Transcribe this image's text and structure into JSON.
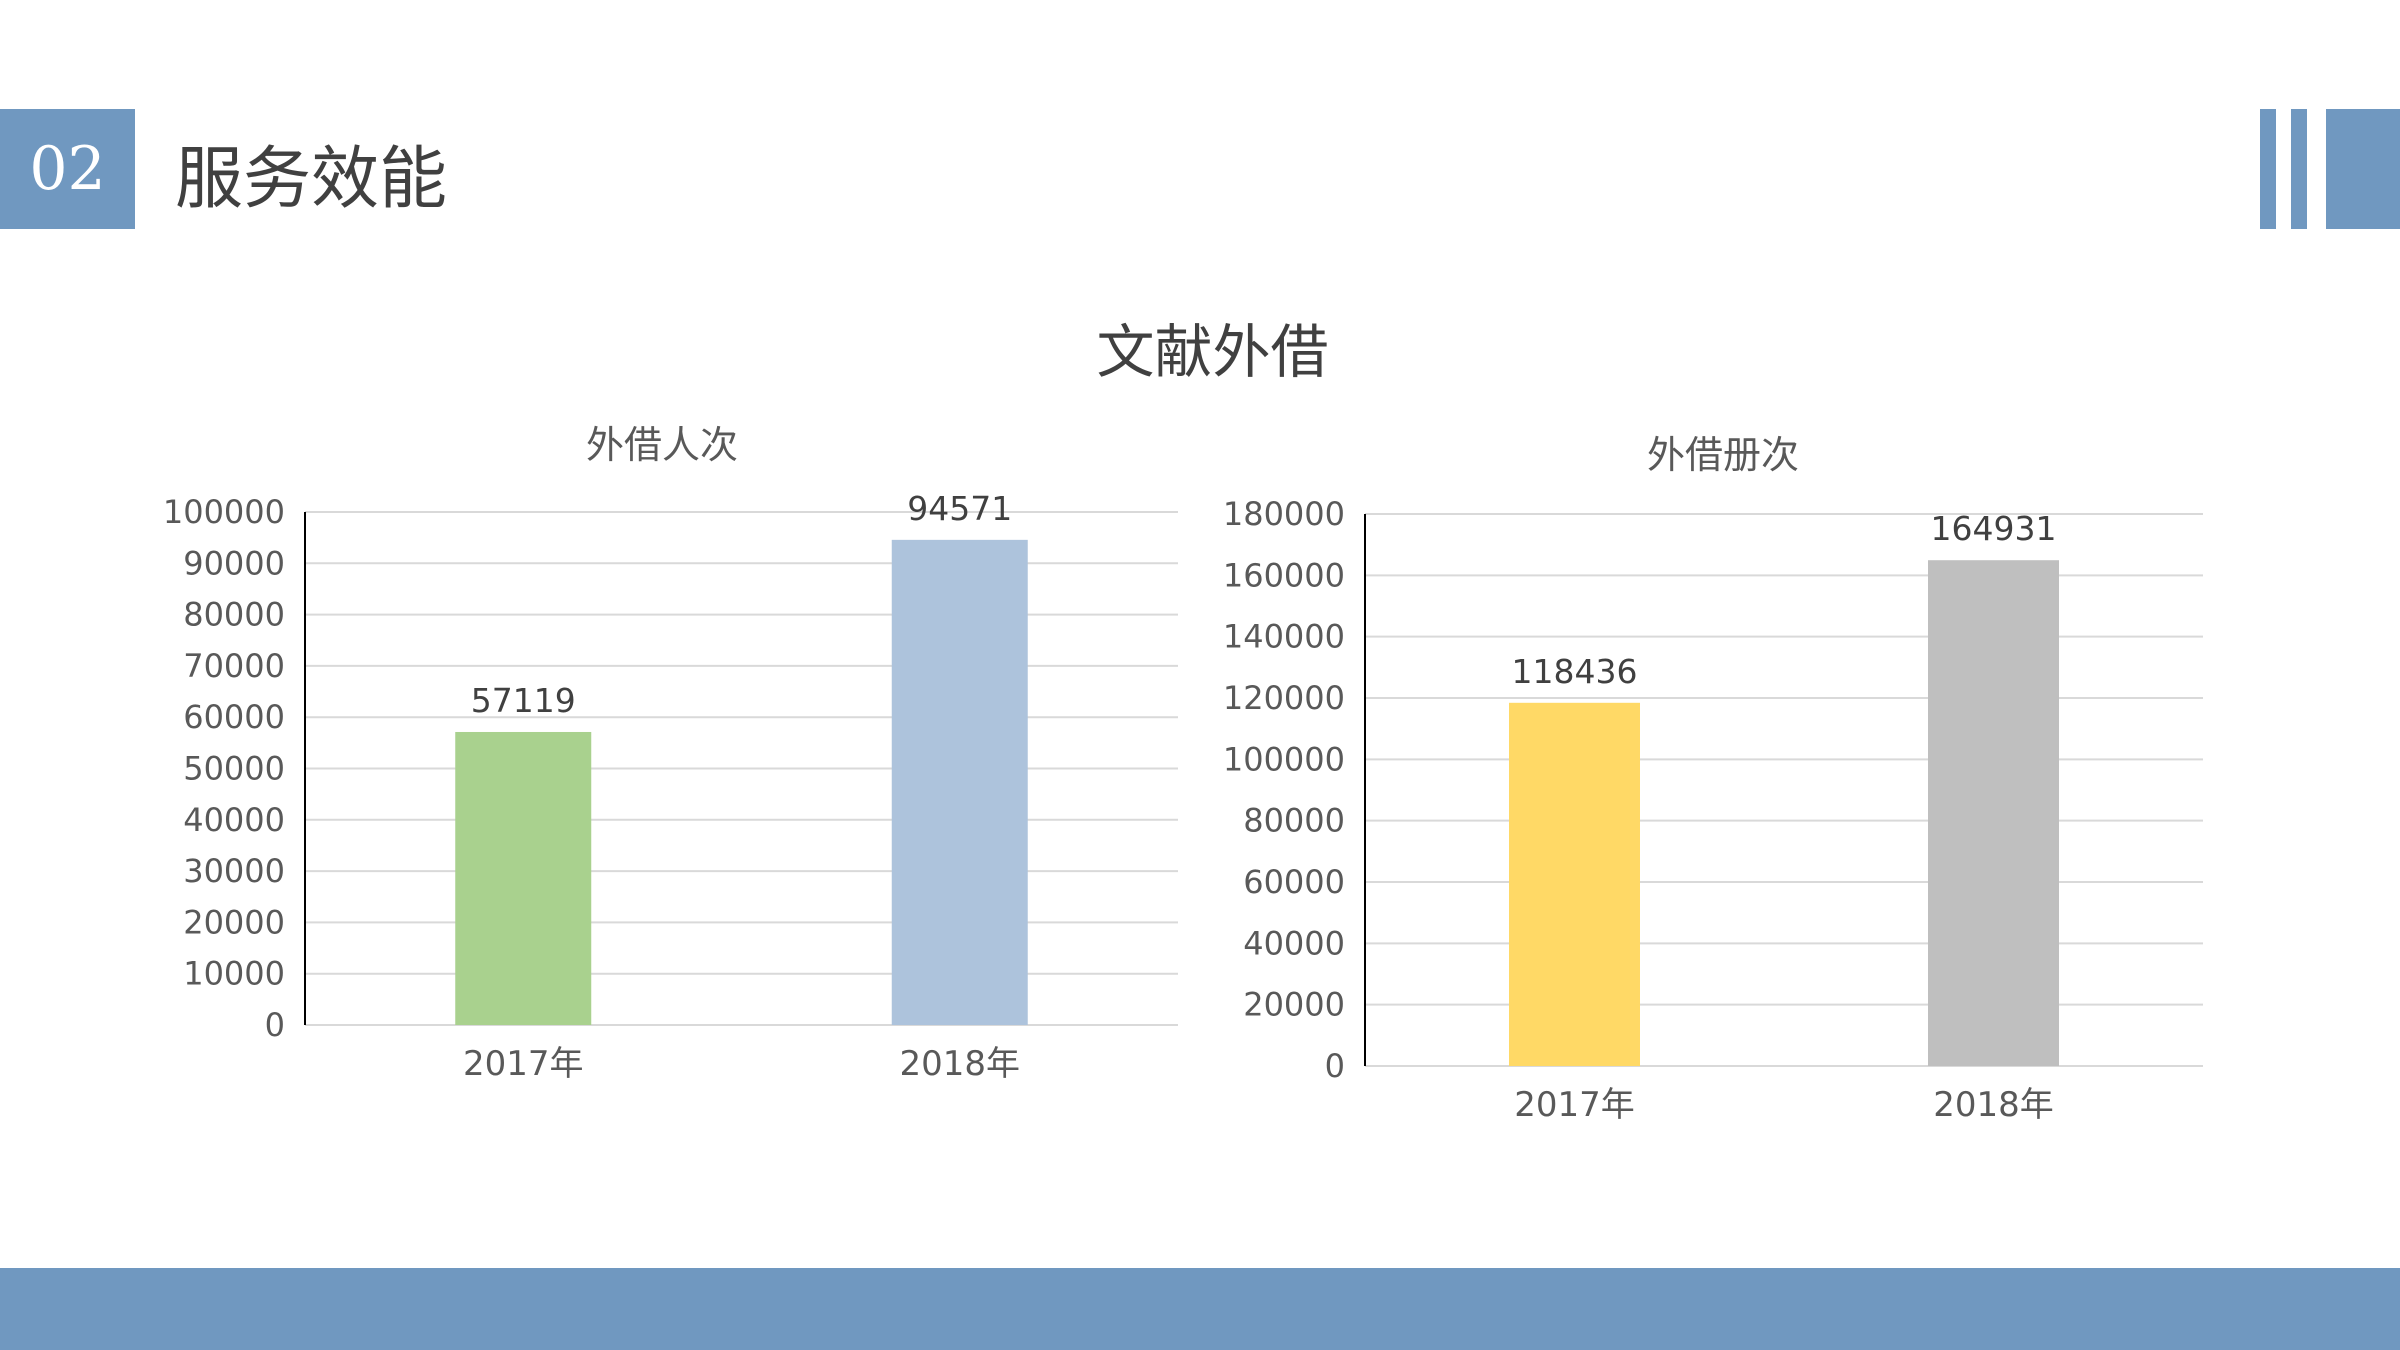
{
  "header": {
    "section_number": "02",
    "title": "服务效能"
  },
  "main": {
    "title": "文献外借"
  },
  "colors": {
    "accent": "#7098c0"
  },
  "chart_data": [
    {
      "type": "bar",
      "title": "外借人次",
      "categories": [
        "2017年",
        "2018年"
      ],
      "values": [
        57119,
        94571
      ],
      "value_labels": [
        "57119",
        "94571"
      ],
      "ylim": [
        0,
        100000
      ],
      "yticks": [
        0,
        10000,
        20000,
        30000,
        40000,
        50000,
        60000,
        70000,
        80000,
        90000,
        100000
      ],
      "ytick_labels": [
        "0",
        "10000",
        "20000",
        "30000",
        "40000",
        "50000",
        "60000",
        "70000",
        "80000",
        "90000",
        "100000"
      ],
      "bar_colors": [
        "#a9d18e",
        "#adc3dc"
      ],
      "grid": true,
      "legend": "none"
    },
    {
      "type": "bar",
      "title": "外借册次",
      "categories": [
        "2017年",
        "2018年"
      ],
      "values": [
        118436,
        164931
      ],
      "value_labels": [
        "118436",
        "164931"
      ],
      "ylim": [
        0,
        180000
      ],
      "yticks": [
        0,
        20000,
        40000,
        60000,
        80000,
        100000,
        120000,
        140000,
        160000,
        180000
      ],
      "ytick_labels": [
        "0",
        "20000",
        "40000",
        "60000",
        "80000",
        "100000",
        "120000",
        "140000",
        "160000",
        "180000"
      ],
      "bar_colors": [
        "#ffd966",
        "#bfbfbf"
      ],
      "grid": true,
      "legend": "none"
    }
  ]
}
